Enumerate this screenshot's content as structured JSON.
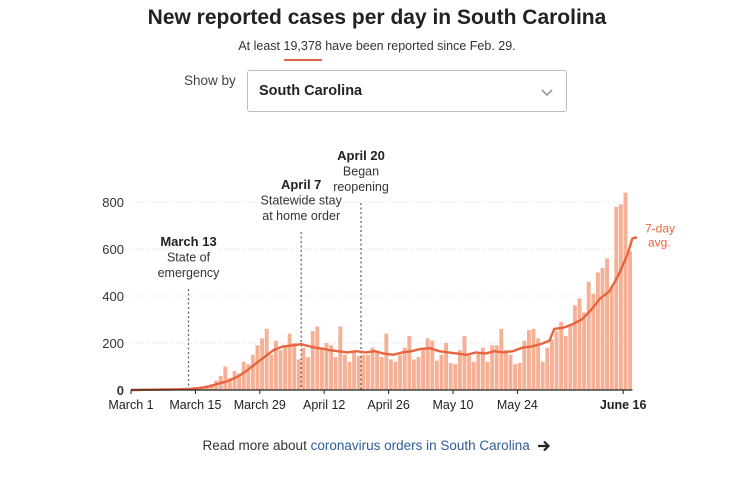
{
  "header": {
    "title": "New reported cases per day in South Carolina",
    "subtitle_prefix": "At least",
    "total": "19,378",
    "subtitle_suffix": "have been reported since Feb. 29."
  },
  "selector": {
    "label": "Show by",
    "selected": "South Carolina"
  },
  "footer": {
    "prefix": "Read more about",
    "link": "coronavirus orders in South Carolina"
  },
  "colors": {
    "bar": "#f5b095",
    "avg": "#e8643f",
    "axis": "#222222",
    "grid": "#dddddd",
    "annotation": "#666666"
  },
  "chart_data": {
    "type": "bar",
    "title": "New reported cases per day in South Carolina",
    "x_labels": [
      "March 1",
      "March 15",
      "March 29",
      "April 12",
      "April 26",
      "May 10",
      "May 24",
      "June 16"
    ],
    "x_label_days": [
      0,
      14,
      28,
      42,
      56,
      70,
      84,
      107
    ],
    "y_ticks": [
      0,
      200,
      400,
      600,
      800
    ],
    "ylim": [
      0,
      850
    ],
    "start_date": "March 1",
    "values": [
      0,
      0,
      0,
      0,
      0,
      0,
      0,
      0,
      0,
      0,
      0,
      2,
      5,
      2,
      8,
      15,
      20,
      25,
      40,
      60,
      100,
      50,
      80,
      70,
      120,
      110,
      150,
      190,
      220,
      260,
      150,
      210,
      170,
      190,
      240,
      200,
      130,
      180,
      140,
      250,
      270,
      180,
      200,
      190,
      140,
      270,
      150,
      120,
      160,
      145,
      150,
      150,
      180,
      165,
      140,
      240,
      130,
      120,
      150,
      180,
      230,
      130,
      140,
      170,
      220,
      210,
      125,
      150,
      200,
      115,
      110,
      170,
      230,
      145,
      120,
      160,
      180,
      120,
      190,
      190,
      260,
      170,
      150,
      110,
      115,
      210,
      255,
      260,
      220,
      120,
      180,
      215,
      250,
      290,
      230,
      280,
      360,
      390,
      330,
      460,
      410,
      500,
      520,
      560,
      440,
      780,
      790,
      840,
      590
    ],
    "avg_label": "7-day avg.",
    "avg_values": [
      [
        0,
        0
      ],
      [
        10,
        3
      ],
      [
        13,
        5
      ],
      [
        15,
        9
      ],
      [
        17,
        15
      ],
      [
        19,
        27
      ],
      [
        21,
        38
      ],
      [
        23,
        55
      ],
      [
        25,
        80
      ],
      [
        27,
        110
      ],
      [
        29,
        140
      ],
      [
        31,
        170
      ],
      [
        33,
        185
      ],
      [
        35,
        190
      ],
      [
        37,
        195
      ],
      [
        38,
        190
      ],
      [
        40,
        180
      ],
      [
        42,
        175
      ],
      [
        43,
        170
      ],
      [
        45,
        165
      ],
      [
        47,
        160
      ],
      [
        49,
        165
      ],
      [
        51,
        160
      ],
      [
        53,
        165
      ],
      [
        55,
        155
      ],
      [
        57,
        150
      ],
      [
        59,
        160
      ],
      [
        61,
        165
      ],
      [
        63,
        175
      ],
      [
        65,
        178
      ],
      [
        67,
        165
      ],
      [
        69,
        160
      ],
      [
        71,
        155
      ],
      [
        73,
        150
      ],
      [
        75,
        160
      ],
      [
        77,
        155
      ],
      [
        79,
        165
      ],
      [
        81,
        160
      ],
      [
        83,
        165
      ],
      [
        85,
        180
      ],
      [
        87,
        185
      ],
      [
        89,
        195
      ],
      [
        91,
        210
      ],
      [
        92,
        260
      ],
      [
        94,
        265
      ],
      [
        96,
        280
      ],
      [
        98,
        300
      ],
      [
        100,
        340
      ],
      [
        102,
        390
      ],
      [
        104,
        420
      ],
      [
        106,
        490
      ],
      [
        108,
        580
      ],
      [
        109,
        645
      ],
      [
        110,
        650
      ]
    ],
    "annotations": [
      {
        "day": 12.5,
        "title": "March 13",
        "lines": [
          "State of",
          "emergency"
        ]
      },
      {
        "day": 37,
        "title": "April 7",
        "lines": [
          "Statewide stay",
          "at home order"
        ]
      },
      {
        "day": 50,
        "title": "April 20",
        "lines": [
          "Began",
          "reopening"
        ]
      }
    ]
  }
}
